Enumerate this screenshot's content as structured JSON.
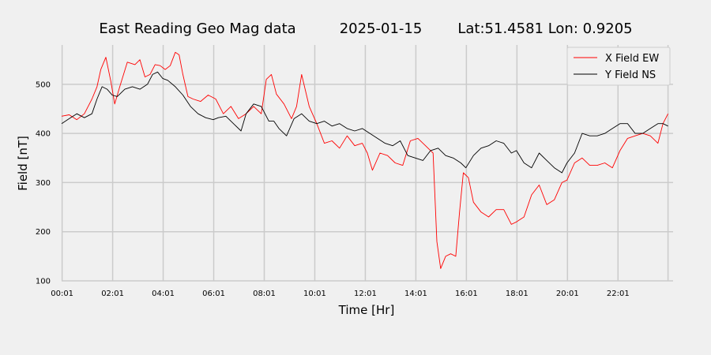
{
  "chart_data": {
    "type": "line",
    "title": "East Reading Geo Mag data",
    "date": "2025-01-15",
    "location": "Lat:51.4581  Lon: 0.9205",
    "xlabel": "Time  [Hr]",
    "ylabel": "Field  [nT]",
    "xlim": [
      0,
      24.2
    ],
    "ylim": [
      100,
      580
    ],
    "x_ticks": [
      0.02,
      2.02,
      4.02,
      6.02,
      8.02,
      10.02,
      12.02,
      14.02,
      16.02,
      18.02,
      20.02,
      22.02
    ],
    "x_tick_labels": [
      "00:01",
      "02:01",
      "04:01",
      "06:01",
      "08:01",
      "10:01",
      "12:01",
      "14:01",
      "16:01",
      "18:01",
      "20:01",
      "22:01"
    ],
    "y_ticks": [
      100,
      200,
      300,
      400,
      500
    ],
    "y_tick_labels": [
      "100",
      "200",
      "300",
      "400",
      "500"
    ],
    "grid": true,
    "legend_position": "top-right",
    "series": [
      {
        "name": "X Field EW",
        "color": "#ff0000",
        "x": [
          0.0,
          0.3,
          0.6,
          0.9,
          1.2,
          1.4,
          1.55,
          1.75,
          1.95,
          2.1,
          2.3,
          2.6,
          2.9,
          3.1,
          3.3,
          3.5,
          3.7,
          3.9,
          4.1,
          4.3,
          4.5,
          4.65,
          4.8,
          5.0,
          5.2,
          5.5,
          5.8,
          6.1,
          6.4,
          6.7,
          7.0,
          7.3,
          7.6,
          7.9,
          8.1,
          8.3,
          8.5,
          8.8,
          9.1,
          9.3,
          9.5,
          9.8,
          10.1,
          10.4,
          10.7,
          11.0,
          11.3,
          11.6,
          11.9,
          12.1,
          12.3,
          12.6,
          12.9,
          13.2,
          13.5,
          13.8,
          14.1,
          14.4,
          14.6,
          14.7,
          14.85,
          15.0,
          15.2,
          15.4,
          15.6,
          15.75,
          15.9,
          16.1,
          16.3,
          16.6,
          16.9,
          17.2,
          17.5,
          17.8,
          18.0,
          18.3,
          18.6,
          18.9,
          19.2,
          19.5,
          19.8,
          20.0,
          20.3,
          20.6,
          20.9,
          21.2,
          21.5,
          21.8,
          22.1,
          22.4,
          22.7,
          23.0,
          23.3,
          23.6,
          23.8,
          24.0
        ],
        "values": [
          435,
          438,
          428,
          440,
          470,
          495,
          530,
          555,
          505,
          460,
          495,
          545,
          540,
          550,
          515,
          520,
          540,
          538,
          530,
          538,
          565,
          560,
          520,
          475,
          470,
          465,
          478,
          470,
          440,
          455,
          430,
          440,
          455,
          440,
          510,
          520,
          480,
          460,
          430,
          455,
          520,
          455,
          420,
          380,
          385,
          370,
          395,
          375,
          380,
          360,
          325,
          360,
          355,
          340,
          335,
          385,
          390,
          375,
          365,
          360,
          180,
          125,
          150,
          155,
          150,
          240,
          320,
          310,
          260,
          240,
          230,
          245,
          245,
          215,
          220,
          230,
          275,
          295,
          255,
          265,
          300,
          305,
          340,
          350,
          335,
          335,
          340,
          330,
          365,
          390,
          395,
          400,
          395,
          380,
          420,
          440
        ]
      },
      {
        "name": "Y Field NS",
        "color": "#000000",
        "x": [
          0.0,
          0.3,
          0.6,
          0.9,
          1.2,
          1.4,
          1.6,
          1.8,
          2.0,
          2.2,
          2.5,
          2.8,
          3.1,
          3.4,
          3.6,
          3.8,
          4.0,
          4.2,
          4.5,
          4.8,
          5.1,
          5.4,
          5.7,
          6.0,
          6.2,
          6.5,
          6.8,
          7.1,
          7.3,
          7.6,
          7.9,
          8.2,
          8.4,
          8.6,
          8.9,
          9.2,
          9.5,
          9.8,
          10.1,
          10.4,
          10.7,
          11.0,
          11.3,
          11.6,
          11.9,
          12.2,
          12.5,
          12.8,
          13.1,
          13.4,
          13.7,
          14.0,
          14.3,
          14.6,
          14.9,
          15.2,
          15.5,
          15.8,
          16.0,
          16.3,
          16.6,
          16.9,
          17.2,
          17.5,
          17.8,
          18.0,
          18.3,
          18.6,
          18.9,
          19.2,
          19.5,
          19.8,
          20.0,
          20.3,
          20.6,
          20.9,
          21.2,
          21.5,
          21.8,
          22.1,
          22.4,
          22.7,
          23.0,
          23.3,
          23.6,
          23.8,
          24.0
        ],
        "values": [
          420,
          430,
          440,
          432,
          440,
          470,
          495,
          490,
          478,
          475,
          490,
          495,
          490,
          500,
          520,
          525,
          512,
          508,
          495,
          478,
          455,
          440,
          432,
          428,
          432,
          435,
          420,
          405,
          440,
          460,
          455,
          425,
          425,
          410,
          395,
          430,
          440,
          425,
          420,
          425,
          415,
          420,
          410,
          405,
          410,
          400,
          390,
          380,
          375,
          385,
          355,
          350,
          345,
          365,
          370,
          355,
          350,
          340,
          330,
          355,
          370,
          375,
          385,
          380,
          360,
          365,
          340,
          330,
          360,
          345,
          330,
          320,
          340,
          360,
          400,
          395,
          395,
          400,
          410,
          420,
          420,
          400,
          400,
          410,
          420,
          420,
          415
        ]
      }
    ]
  }
}
